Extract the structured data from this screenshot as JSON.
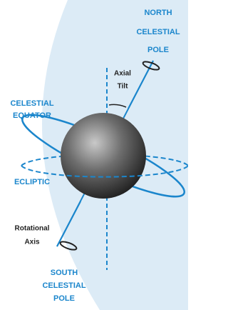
{
  "labels": {
    "north_pole": [
      "NORTH",
      "CELESTIAL",
      "POLE"
    ],
    "axial_tilt": [
      "Axial",
      "Tilt"
    ],
    "celestial_equator": [
      "CELESTIAL",
      "EQUATOR"
    ],
    "ecliptic": [
      "ECLIPTIC"
    ],
    "rotational_axis": [
      "Rotational",
      "Axis"
    ],
    "south_pole": [
      "SOUTH",
      "CELESTIAL",
      "POLE"
    ]
  }
}
